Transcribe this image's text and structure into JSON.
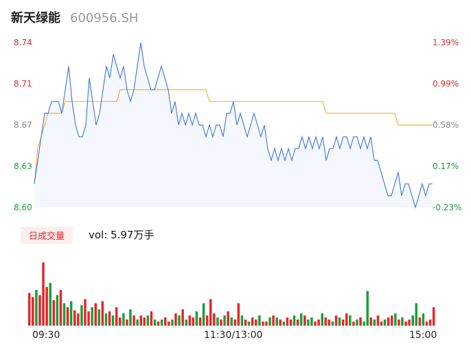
{
  "header": {
    "name": "新天绿能",
    "code": "600956.SH"
  },
  "volume": {
    "badge": "日成交量",
    "text": "vol: 5.97万手"
  },
  "colors": {
    "price_line": "#4a7de0",
    "avg_line": "#f0b430",
    "up": "#e5262a",
    "down": "#1a9e3a",
    "fill": "#f4f7fd"
  },
  "time_labels": [
    "09:30",
    "11:30/13:00",
    "15:00"
  ],
  "chart_data": [
    {
      "type": "line",
      "y_left_ticks": [
        "8.74",
        "8.71",
        "8.67",
        "8.63",
        "8.60"
      ],
      "y_right_ticks": [
        "1.39%",
        "0.99%",
        "0.58%",
        "0.17%",
        "-0.23%"
      ],
      "ylim": [
        8.6,
        8.74
      ],
      "series": [
        {
          "values": [
            8.62,
            8.64,
            8.66,
            8.68,
            8.68,
            8.69,
            8.69,
            8.69,
            8.68,
            8.7,
            8.72,
            8.69,
            8.67,
            8.66,
            8.66,
            8.67,
            8.71,
            8.69,
            8.67,
            8.68,
            8.7,
            8.72,
            8.71,
            8.73,
            8.72,
            8.71,
            8.72,
            8.7,
            8.69,
            8.7,
            8.72,
            8.74,
            8.72,
            8.71,
            8.7,
            8.7,
            8.71,
            8.72,
            8.71,
            8.7,
            8.68,
            8.69,
            8.67,
            8.68,
            8.67,
            8.68,
            8.67,
            8.68,
            8.67,
            8.67,
            8.66,
            8.67,
            8.66,
            8.67,
            8.67,
            8.66,
            8.68,
            8.68,
            8.69,
            8.67,
            8.68,
            8.67,
            8.66,
            8.67,
            8.68,
            8.67,
            8.66,
            8.67,
            8.65,
            8.64,
            8.65,
            8.64,
            8.65,
            8.64,
            8.65,
            8.64,
            8.65,
            8.65,
            8.66,
            8.65,
            8.66,
            8.65,
            8.66,
            8.65,
            8.66,
            8.64,
            8.65,
            8.65,
            8.66,
            8.65,
            8.66,
            8.66,
            8.65,
            8.66,
            8.66,
            8.65,
            8.66,
            8.65,
            8.66,
            8.64,
            8.64,
            8.63,
            8.62,
            8.61,
            8.61,
            8.62,
            8.63,
            8.61,
            8.62,
            8.62,
            8.61,
            8.6,
            8.61,
            8.62,
            8.61,
            8.62,
            8.62
          ]
        },
        {
          "values": [
            8.62,
            8.65,
            8.66,
            8.67,
            8.68,
            8.68,
            8.68,
            8.68,
            8.68,
            8.69,
            8.69,
            8.69,
            8.69,
            8.69,
            8.69,
            8.69,
            8.69,
            8.69,
            8.69,
            8.69,
            8.69,
            8.69,
            8.69,
            8.69,
            8.69,
            8.7,
            8.7,
            8.7,
            8.7,
            8.7,
            8.7,
            8.7,
            8.7,
            8.7,
            8.7,
            8.7,
            8.7,
            8.7,
            8.7,
            8.7,
            8.7,
            8.7,
            8.7,
            8.7,
            8.7,
            8.7,
            8.7,
            8.7,
            8.7,
            8.7,
            8.7,
            8.69,
            8.69,
            8.69,
            8.69,
            8.69,
            8.69,
            8.69,
            8.69,
            8.69,
            8.69,
            8.69,
            8.69,
            8.69,
            8.69,
            8.69,
            8.69,
            8.69,
            8.69,
            8.69,
            8.69,
            8.69,
            8.69,
            8.69,
            8.69,
            8.69,
            8.69,
            8.69,
            8.69,
            8.69,
            8.69,
            8.69,
            8.69,
            8.69,
            8.69,
            8.68,
            8.68,
            8.68,
            8.68,
            8.68,
            8.68,
            8.68,
            8.68,
            8.68,
            8.68,
            8.68,
            8.68,
            8.68,
            8.68,
            8.68,
            8.68,
            8.68,
            8.68,
            8.68,
            8.68,
            8.68,
            8.67,
            8.67,
            8.67,
            8.67,
            8.67,
            8.67,
            8.67,
            8.67,
            8.67,
            8.67,
            8.67
          ]
        }
      ]
    },
    {
      "type": "bar",
      "values": [
        32,
        28,
        35,
        30,
        62,
        38,
        42,
        25,
        30,
        35,
        22,
        18,
        24,
        15,
        12,
        20,
        26,
        14,
        18,
        22,
        16,
        24,
        12,
        14,
        10,
        18,
        8,
        12,
        6,
        16,
        10,
        6,
        10,
        8,
        10,
        14,
        6,
        4,
        6,
        8,
        4,
        6,
        12,
        10,
        16,
        6,
        10,
        8,
        14,
        8,
        22,
        10,
        26,
        12,
        8,
        6,
        10,
        14,
        8,
        6,
        22,
        10,
        6,
        4,
        8,
        6,
        10,
        4,
        4,
        8,
        10,
        8,
        6,
        4,
        8,
        6,
        10,
        6,
        12,
        10,
        6,
        8,
        4,
        6,
        12,
        8,
        6,
        4,
        10,
        8,
        6,
        12,
        10,
        4,
        6,
        8,
        4,
        34,
        8,
        6,
        10,
        4,
        6,
        8,
        10,
        12,
        6,
        8,
        4,
        6,
        10,
        22,
        8,
        12,
        4,
        6,
        18
      ],
      "colors": [
        "u",
        "u",
        "d",
        "u",
        "u",
        "u",
        "d",
        "u",
        "d",
        "u",
        "d",
        "u",
        "d",
        "u",
        "u",
        "d",
        "u",
        "u",
        "d",
        "u",
        "d",
        "u",
        "d",
        "u",
        "d",
        "u",
        "u",
        "d",
        "u",
        "d",
        "u",
        "d",
        "u",
        "u",
        "d",
        "u",
        "d",
        "u",
        "d",
        "u",
        "u",
        "d",
        "u",
        "d",
        "u",
        "d",
        "u",
        "u",
        "d",
        "u",
        "d",
        "u",
        "u",
        "u",
        "d",
        "u",
        "d",
        "u",
        "d",
        "u",
        "u",
        "d",
        "u",
        "d",
        "u",
        "u",
        "d",
        "u",
        "u",
        "d",
        "u",
        "d",
        "u",
        "d",
        "u",
        "u",
        "d",
        "u",
        "d",
        "u",
        "d",
        "d",
        "u",
        "u",
        "d",
        "u",
        "u",
        "d",
        "u",
        "d",
        "u",
        "u",
        "d",
        "u",
        "d",
        "u",
        "d",
        "d",
        "u",
        "d",
        "u",
        "u",
        "d",
        "u",
        "u",
        "d",
        "u",
        "d",
        "u",
        "u",
        "d",
        "d",
        "u",
        "d",
        "u",
        "u",
        "u"
      ]
    }
  ]
}
